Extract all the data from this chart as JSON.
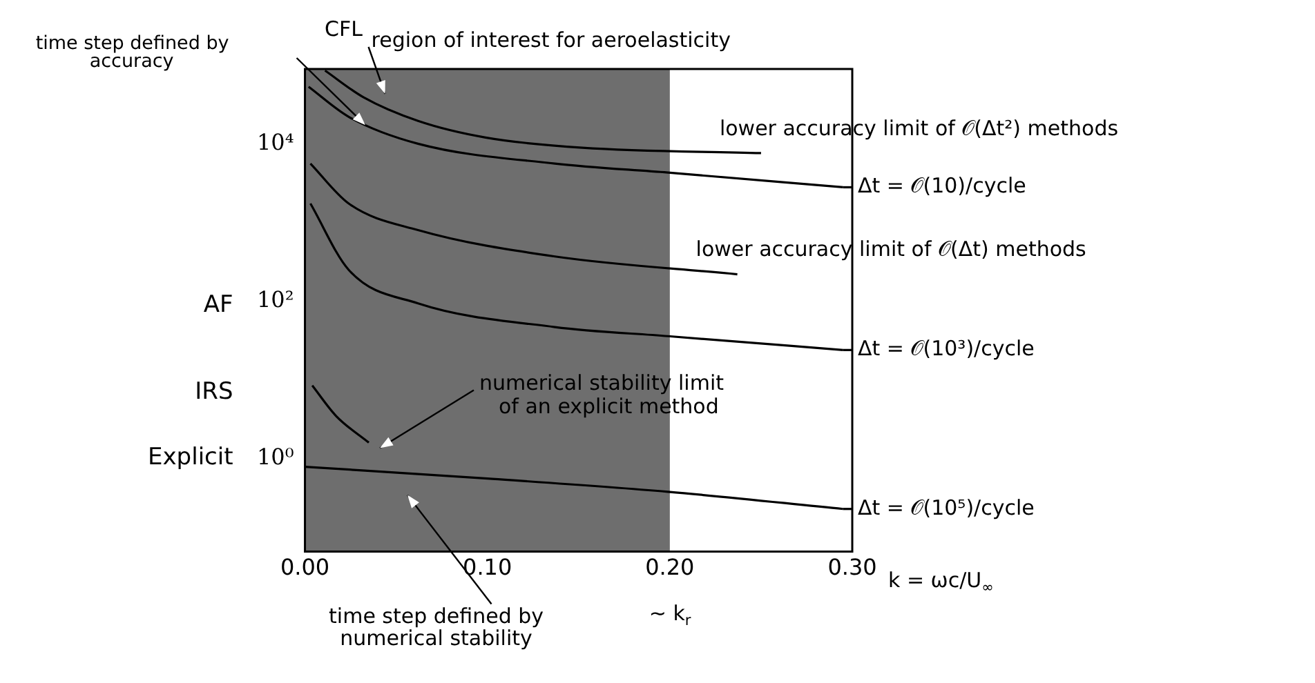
{
  "chart_data": {
    "type": "line",
    "xlabel": "k = ωc/U$_{∞}$",
    "log": true,
    "xlim": [
      0,
      0.3
    ],
    "xticks": [
      {
        "value": 0,
        "label": "0.00"
      },
      {
        "value": 0.1,
        "label": "0.10"
      },
      {
        "value": 0.2,
        "label": "0.20"
      },
      {
        "value": 0.3,
        "label": "0.30"
      }
    ],
    "ylim": [
      0.066,
      89000
    ],
    "yticks": [
      {
        "value": 1,
        "label": "10⁰"
      },
      {
        "value": 100,
        "label": "10²"
      },
      {
        "value": 10000,
        "label": "10⁴"
      }
    ],
    "bands": [
      {
        "axis": "x",
        "from": 0,
        "to": 0.2,
        "label": "region of interest for aeroelasticity",
        "color": "#6e6e6e"
      }
    ],
    "series": [
      {
        "name": "lower accuracy limit of 𝒪(Δt²) methods",
        "color": "#000000",
        "x": [
          0.011,
          0.032,
          0.062,
          0.099,
          0.152,
          0.25
        ],
        "values": [
          85000,
          39000,
          19500,
          12000,
          8900,
          7600
        ]
      },
      {
        "name": "Δt = 𝒪(10)/cycle",
        "color": "#000000",
        "x": [
          0.002,
          0.024,
          0.062,
          0.137,
          0.199,
          0.295
        ],
        "values": [
          53000,
          22000,
          10000,
          5600,
          4300,
          2800
        ]
      },
      {
        "name": "lower accuracy limit of 𝒪(Δt) methods",
        "color": "#000000",
        "x": [
          0.003,
          0.024,
          0.062,
          0.137,
          0.237
        ],
        "values": [
          5600,
          1740,
          800,
          370,
          220
        ]
      },
      {
        "name": "Δt = 𝒪(10³)/cycle",
        "color": "#000000",
        "x": [
          0.003,
          0.024,
          0.062,
          0.137,
          0.199,
          0.295
        ],
        "values": [
          1740,
          250,
          94,
          47,
          36,
          24
        ]
      },
      {
        "name": "numerical stability limit of an explicit method",
        "color": "#000000",
        "x": [
          0.004,
          0.017,
          0.035
        ],
        "values": [
          8.5,
          3.5,
          1.6
        ]
      },
      {
        "name": "Δt = 𝒪(10⁵)/cycle",
        "color": "#000000",
        "x": [
          0.0,
          0.1,
          0.199,
          0.295
        ],
        "values": [
          0.79,
          0.56,
          0.38,
          0.23
        ]
      }
    ],
    "annotations": [
      "CFL",
      "time step defined by accuracy",
      "AF",
      "IRS",
      "Explicit",
      "∼ k$_{r}$",
      "time step defined by numerical stability"
    ],
    "legend": "right"
  }
}
